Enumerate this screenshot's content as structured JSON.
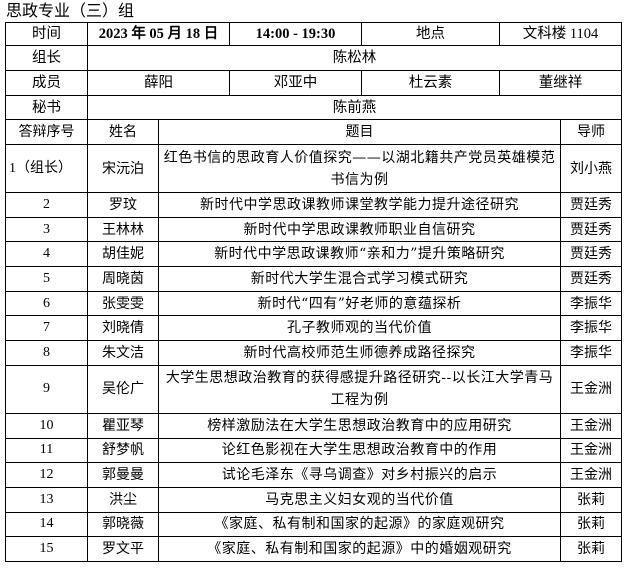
{
  "title": "思政专业（三）组",
  "info": {
    "time_label": "时间",
    "date": "2023 年 05 月 18 日",
    "time_range": "14:00 - 19:30",
    "location_label": "地点",
    "location": "文科楼 1104",
    "leader_label": "组长",
    "leader": "陈松林",
    "members_label": "成员",
    "members": [
      "薛阳",
      "邓亚中",
      "杜云素",
      "董继祥"
    ],
    "secretary_label": "秘书",
    "secretary": "陈前燕"
  },
  "table": {
    "headers": [
      "答辩序号",
      "姓名",
      "题目",
      "导师"
    ],
    "rows": [
      {
        "no": "1（组长）",
        "name": "宋沅泊",
        "topic": "红色书信的思政育人价值探究——以湖北籍共产党员英雄模范书信为例",
        "advisor": "刘小燕"
      },
      {
        "no": "2",
        "name": "罗玟",
        "topic": "新时代中学思政课教师课堂教学能力提升途径研究",
        "advisor": "贾廷秀"
      },
      {
        "no": "3",
        "name": "王林林",
        "topic": "新时代中学思政课教师职业自信研究",
        "advisor": "贾廷秀"
      },
      {
        "no": "4",
        "name": "胡佳妮",
        "topic": "新时代中学思政课教师“亲和力”提升策略研究",
        "advisor": "贾廷秀"
      },
      {
        "no": "5",
        "name": "周晓茵",
        "topic": "新时代大学生混合式学习模式研究",
        "advisor": "贾廷秀"
      },
      {
        "no": "6",
        "name": "张雯雯",
        "topic": "新时代“四有”好老师的意蕴探析",
        "advisor": "李振华"
      },
      {
        "no": "7",
        "name": "刘晓倩",
        "topic": "孔子教师观的当代价值",
        "advisor": "李振华"
      },
      {
        "no": "8",
        "name": "朱文洁",
        "topic": "新时代高校师范生师德养成路径探究",
        "advisor": "李振华"
      },
      {
        "no": "9",
        "name": "吴伦广",
        "topic": "大学生思想政治教育的获得感提升路径研究--以长江大学青马工程为例",
        "advisor": "王金洲"
      },
      {
        "no": "10",
        "name": "瞿亚琴",
        "topic": "榜样激励法在大学生思想政治教育中的应用研究",
        "advisor": "王金洲"
      },
      {
        "no": "11",
        "name": "舒梦帆",
        "topic": "论红色影视在大学生思想政治教育中的作用",
        "advisor": "王金洲"
      },
      {
        "no": "12",
        "name": "郭曼曼",
        "topic": "试论毛泽东《寻乌调查》对乡村振兴的启示",
        "advisor": "王金洲"
      },
      {
        "no": "13",
        "name": "洪尘",
        "topic": "马克思主义妇女观的当代价值",
        "advisor": "张莉"
      },
      {
        "no": "14",
        "name": "郭晓薇",
        "topic": "《家庭、私有制和国家的起源》的家庭观研究",
        "advisor": "张莉"
      },
      {
        "no": "15",
        "name": "罗文平",
        "topic": "《家庭、私有制和国家的起源》中的婚姻观研究",
        "advisor": "张莉"
      }
    ]
  }
}
